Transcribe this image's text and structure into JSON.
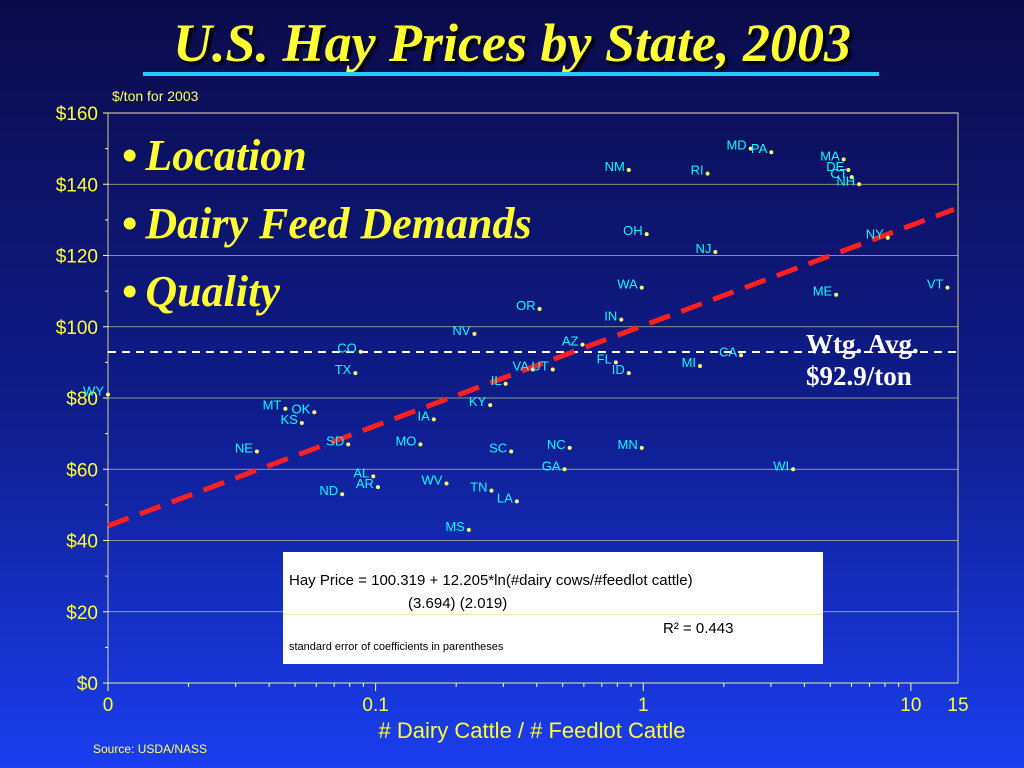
{
  "slide": {
    "title": "U.S. Hay Prices by State, 2003",
    "bullets": [
      "Location",
      "Dairy Feed Demands",
      "Quality"
    ],
    "avg_label_line1": "Wtg. Avg.",
    "avg_label_line2": "$92.9/ton",
    "equation": {
      "formula": "Hay Price = 100.319 + 12.205*ln(#dairy cows/#feedlot cattle)",
      "std_errors": "(3.694)     (2.019)",
      "r_squared": "R² = 0.443",
      "note": "standard error of coefficients in parentheses"
    },
    "source": "Source:  USDA/NASS"
  },
  "colors": {
    "title": "#ffff33",
    "underline": "#22ccff",
    "axis_text": "#ffff33",
    "state_label": "#00ffff",
    "point": "#ffff66",
    "trend_line": "#ff2020",
    "avg_line": "#ffffff",
    "grid": "#ffff99"
  },
  "chart_data": {
    "type": "scatter",
    "title": "",
    "unit_label": "$/ton for 2003",
    "xlabel": "# Dairy Cattle / # Feedlot Cattle",
    "ylabel": "",
    "x_scale": "log",
    "xlim": [
      0.01,
      15
    ],
    "ylim": [
      0,
      160
    ],
    "x_tick_labels": [
      {
        "value": 0.01,
        "label": "0"
      },
      {
        "value": 0.1,
        "label": "0.1"
      },
      {
        "value": 1,
        "label": "1"
      },
      {
        "value": 10,
        "label": "10"
      },
      {
        "value": 15,
        "label": "15"
      }
    ],
    "y_ticks": [
      0,
      20,
      40,
      60,
      80,
      100,
      120,
      140,
      160
    ],
    "y_tick_labels": [
      "$0",
      "$20",
      "$40",
      "$60",
      "$80",
      "$100",
      "$120",
      "$140",
      "$160"
    ],
    "grid": "horizontal",
    "weighted_average": 92.9,
    "trend_line": {
      "intercept": 100.319,
      "slope": 12.205,
      "form": "log"
    },
    "points": [
      {
        "state": "WY",
        "x": 0.01,
        "y": 81
      },
      {
        "state": "NE",
        "x": 0.036,
        "y": 65
      },
      {
        "state": "MT",
        "x": 0.046,
        "y": 77
      },
      {
        "state": "KS",
        "x": 0.053,
        "y": 73
      },
      {
        "state": "OK",
        "x": 0.059,
        "y": 76
      },
      {
        "state": "CO",
        "x": 0.088,
        "y": 93
      },
      {
        "state": "TX",
        "x": 0.084,
        "y": 87
      },
      {
        "state": "SD",
        "x": 0.079,
        "y": 67
      },
      {
        "state": "ND",
        "x": 0.075,
        "y": 53
      },
      {
        "state": "AL",
        "x": 0.098,
        "y": 58
      },
      {
        "state": "AR",
        "x": 0.102,
        "y": 55
      },
      {
        "state": "MO",
        "x": 0.147,
        "y": 67
      },
      {
        "state": "IA",
        "x": 0.165,
        "y": 74
      },
      {
        "state": "WV",
        "x": 0.184,
        "y": 56
      },
      {
        "state": "MS",
        "x": 0.223,
        "y": 43
      },
      {
        "state": "NV",
        "x": 0.234,
        "y": 98
      },
      {
        "state": "TN",
        "x": 0.271,
        "y": 54
      },
      {
        "state": "IL",
        "x": 0.306,
        "y": 84
      },
      {
        "state": "KY",
        "x": 0.268,
        "y": 78
      },
      {
        "state": "SC",
        "x": 0.321,
        "y": 65
      },
      {
        "state": "LA",
        "x": 0.337,
        "y": 51
      },
      {
        "state": "VA",
        "x": 0.387,
        "y": 88
      },
      {
        "state": "OR",
        "x": 0.41,
        "y": 105
      },
      {
        "state": "NC",
        "x": 0.531,
        "y": 66
      },
      {
        "state": "GA",
        "x": 0.508,
        "y": 60
      },
      {
        "state": "UT",
        "x": 0.459,
        "y": 88
      },
      {
        "state": "AZ",
        "x": 0.593,
        "y": 95
      },
      {
        "state": "FL",
        "x": 0.79,
        "y": 90
      },
      {
        "state": "ID",
        "x": 0.883,
        "y": 87
      },
      {
        "state": "IN",
        "x": 0.828,
        "y": 102
      },
      {
        "state": "MN",
        "x": 0.987,
        "y": 66
      },
      {
        "state": "WA",
        "x": 0.987,
        "y": 111
      },
      {
        "state": "OH",
        "x": 1.03,
        "y": 126
      },
      {
        "state": "NM",
        "x": 0.883,
        "y": 144
      },
      {
        "state": "MI",
        "x": 1.63,
        "y": 89
      },
      {
        "state": "CA",
        "x": 2.32,
        "y": 92
      },
      {
        "state": "NJ",
        "x": 1.86,
        "y": 121
      },
      {
        "state": "RI",
        "x": 1.74,
        "y": 143
      },
      {
        "state": "MD",
        "x": 2.52,
        "y": 150
      },
      {
        "state": "PA",
        "x": 3.01,
        "y": 149
      },
      {
        "state": "WI",
        "x": 3.63,
        "y": 60
      },
      {
        "state": "ME",
        "x": 5.26,
        "y": 109
      },
      {
        "state": "MA",
        "x": 5.61,
        "y": 147
      },
      {
        "state": "DE",
        "x": 5.84,
        "y": 144
      },
      {
        "state": "CT",
        "x": 6.01,
        "y": 142
      },
      {
        "state": "NH",
        "x": 6.41,
        "y": 140
      },
      {
        "state": "NY",
        "x": 8.2,
        "y": 125
      },
      {
        "state": "VT",
        "x": 13.7,
        "y": 111
      }
    ]
  }
}
